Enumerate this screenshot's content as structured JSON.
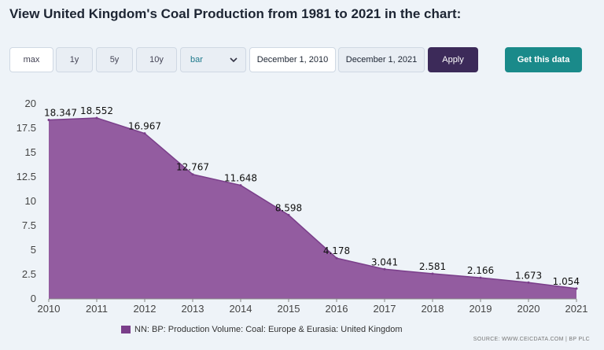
{
  "page": {
    "title": "View United Kingdom's Coal Production from 1981 to 2021 in the chart:"
  },
  "toolbar": {
    "range_buttons": [
      "max",
      "1y",
      "5y",
      "10y"
    ],
    "active_range": "max",
    "chart_type": "bar",
    "start_date": "December 1, 2010",
    "end_date": "December 1, 2021",
    "apply_label": "Apply",
    "get_data_label": "Get this data"
  },
  "colors": {
    "series": "#7a3e8a",
    "series_fill": "#8b4f98",
    "apply": "#3c2a59",
    "get_data": "#1a8a8a"
  },
  "source_text": "SOURCE: WWW.CEICDATA.COM | BP PLC",
  "chart_data": {
    "type": "area",
    "title": "",
    "xlabel": "",
    "ylabel": "",
    "x": [
      2010,
      2011,
      2012,
      2013,
      2014,
      2015,
      2016,
      2017,
      2018,
      2019,
      2020,
      2021
    ],
    "y_ticks": [
      "0",
      "2.5",
      "5",
      "7.5",
      "10",
      "12.5",
      "15",
      "17.5",
      "20"
    ],
    "ylim": [
      0,
      20
    ],
    "grid": false,
    "legend_position": "bottom",
    "series": [
      {
        "name": "NN: BP: Production Volume: Coal: Europe & Eurasia: United Kingdom",
        "values": [
          18.347,
          18.552,
          16.967,
          12.767,
          11.648,
          8.598,
          4.178,
          3.041,
          2.581,
          2.166,
          1.673,
          1.054
        ],
        "labels": [
          "18.347",
          "18.552",
          "16.967",
          "12.767",
          "11.648",
          "8.598",
          "4.178",
          "3.041",
          "2.581",
          "2.166",
          "1.673",
          "1.054"
        ]
      }
    ]
  }
}
